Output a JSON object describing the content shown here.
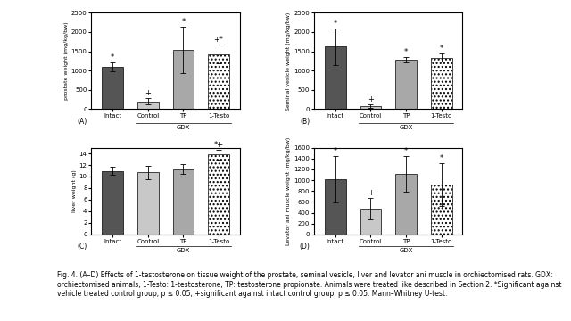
{
  "chart_data": [
    {
      "type": "bar",
      "panel": "(A)",
      "y_label": "prostate weight (mg/kg/bw)",
      "categories": [
        "Intact",
        "Control",
        "TP",
        "1-Testo"
      ],
      "values": [
        1100,
        200,
        1530,
        1430
      ],
      "errors": [
        120,
        80,
        600,
        250
      ],
      "significance": [
        "*",
        "+",
        "*",
        "+*"
      ],
      "group_label": "GDX",
      "group_members": [
        "Control",
        "TP",
        "1-Testo"
      ],
      "colors": [
        "#555555",
        "#c8c8c8",
        "#a8a8a8",
        "#ffffff"
      ],
      "ylim": [
        0,
        2500
      ],
      "yticks": [
        0,
        500,
        1000,
        1500,
        2000,
        2500
      ]
    },
    {
      "type": "bar",
      "panel": "(B)",
      "y_label": "Seminal vesicle weight (mg/kg/bw)",
      "categories": [
        "Intact",
        "Control",
        "TP",
        "1-Testo"
      ],
      "values": [
        1620,
        80,
        1290,
        1340
      ],
      "errors": [
        480,
        40,
        70,
        100
      ],
      "significance": [
        "*",
        "+",
        "*",
        "*"
      ],
      "group_label": "GDX",
      "group_members": [
        "Control",
        "TP",
        "1-Testo"
      ],
      "colors": [
        "#555555",
        "#c8c8c8",
        "#a8a8a8",
        "#ffffff"
      ],
      "ylim": [
        0,
        2500
      ],
      "yticks": [
        0,
        500,
        1000,
        1500,
        2000,
        2500
      ]
    },
    {
      "type": "bar",
      "panel": "(C)",
      "y_label": "liver weight (g)",
      "categories": [
        "Intact",
        "Control",
        "TP",
        "1-Testo"
      ],
      "values": [
        11,
        10.7,
        11.3,
        13.8
      ],
      "errors": [
        0.7,
        1.2,
        0.8,
        0.8
      ],
      "significance": [
        null,
        null,
        null,
        "*+"
      ],
      "group_label": "GDX",
      "group_members": [
        "Control",
        "TP",
        "1-Testo"
      ],
      "colors": [
        "#555555",
        "#c8c8c8",
        "#a8a8a8",
        "#ffffff"
      ],
      "ylim": [
        0,
        15
      ],
      "yticks": [
        0,
        2,
        4,
        6,
        8,
        10,
        12,
        14
      ]
    },
    {
      "type": "bar",
      "panel": "(D)",
      "y_label": "Levator ani muscle weight (mg/kg/bw)",
      "categories": [
        "Intact",
        "Control",
        "TP",
        "1-Testo"
      ],
      "values": [
        1020,
        470,
        1110,
        920
      ],
      "errors": [
        430,
        200,
        330,
        400
      ],
      "significance": [
        "*",
        "+",
        "*",
        "*"
      ],
      "group_label": "GDX",
      "group_members": [
        "Control",
        "TP",
        "1-Testo"
      ],
      "colors": [
        "#555555",
        "#c8c8c8",
        "#a8a8a8",
        "#ffffff"
      ],
      "ylim": [
        0,
        1600
      ],
      "yticks": [
        0,
        200,
        400,
        600,
        800,
        1000,
        1200,
        1400,
        1600
      ]
    }
  ],
  "caption": "Fig. 4. (A–D) Effects of 1-testosterone on tissue weight of the prostate, seminal vesicle, liver and levator ani muscle in orchiectomised rats. GDX: orchiectomised animals, 1-Testo: 1-testosterone, TP: testosterone propionate. Animals were treated like described in Section 2. *Significant against vehicle treated control group, p ≤ 0.05, +significant against intact control group, p ≤ 0.05. Mann–Whitney U-test."
}
